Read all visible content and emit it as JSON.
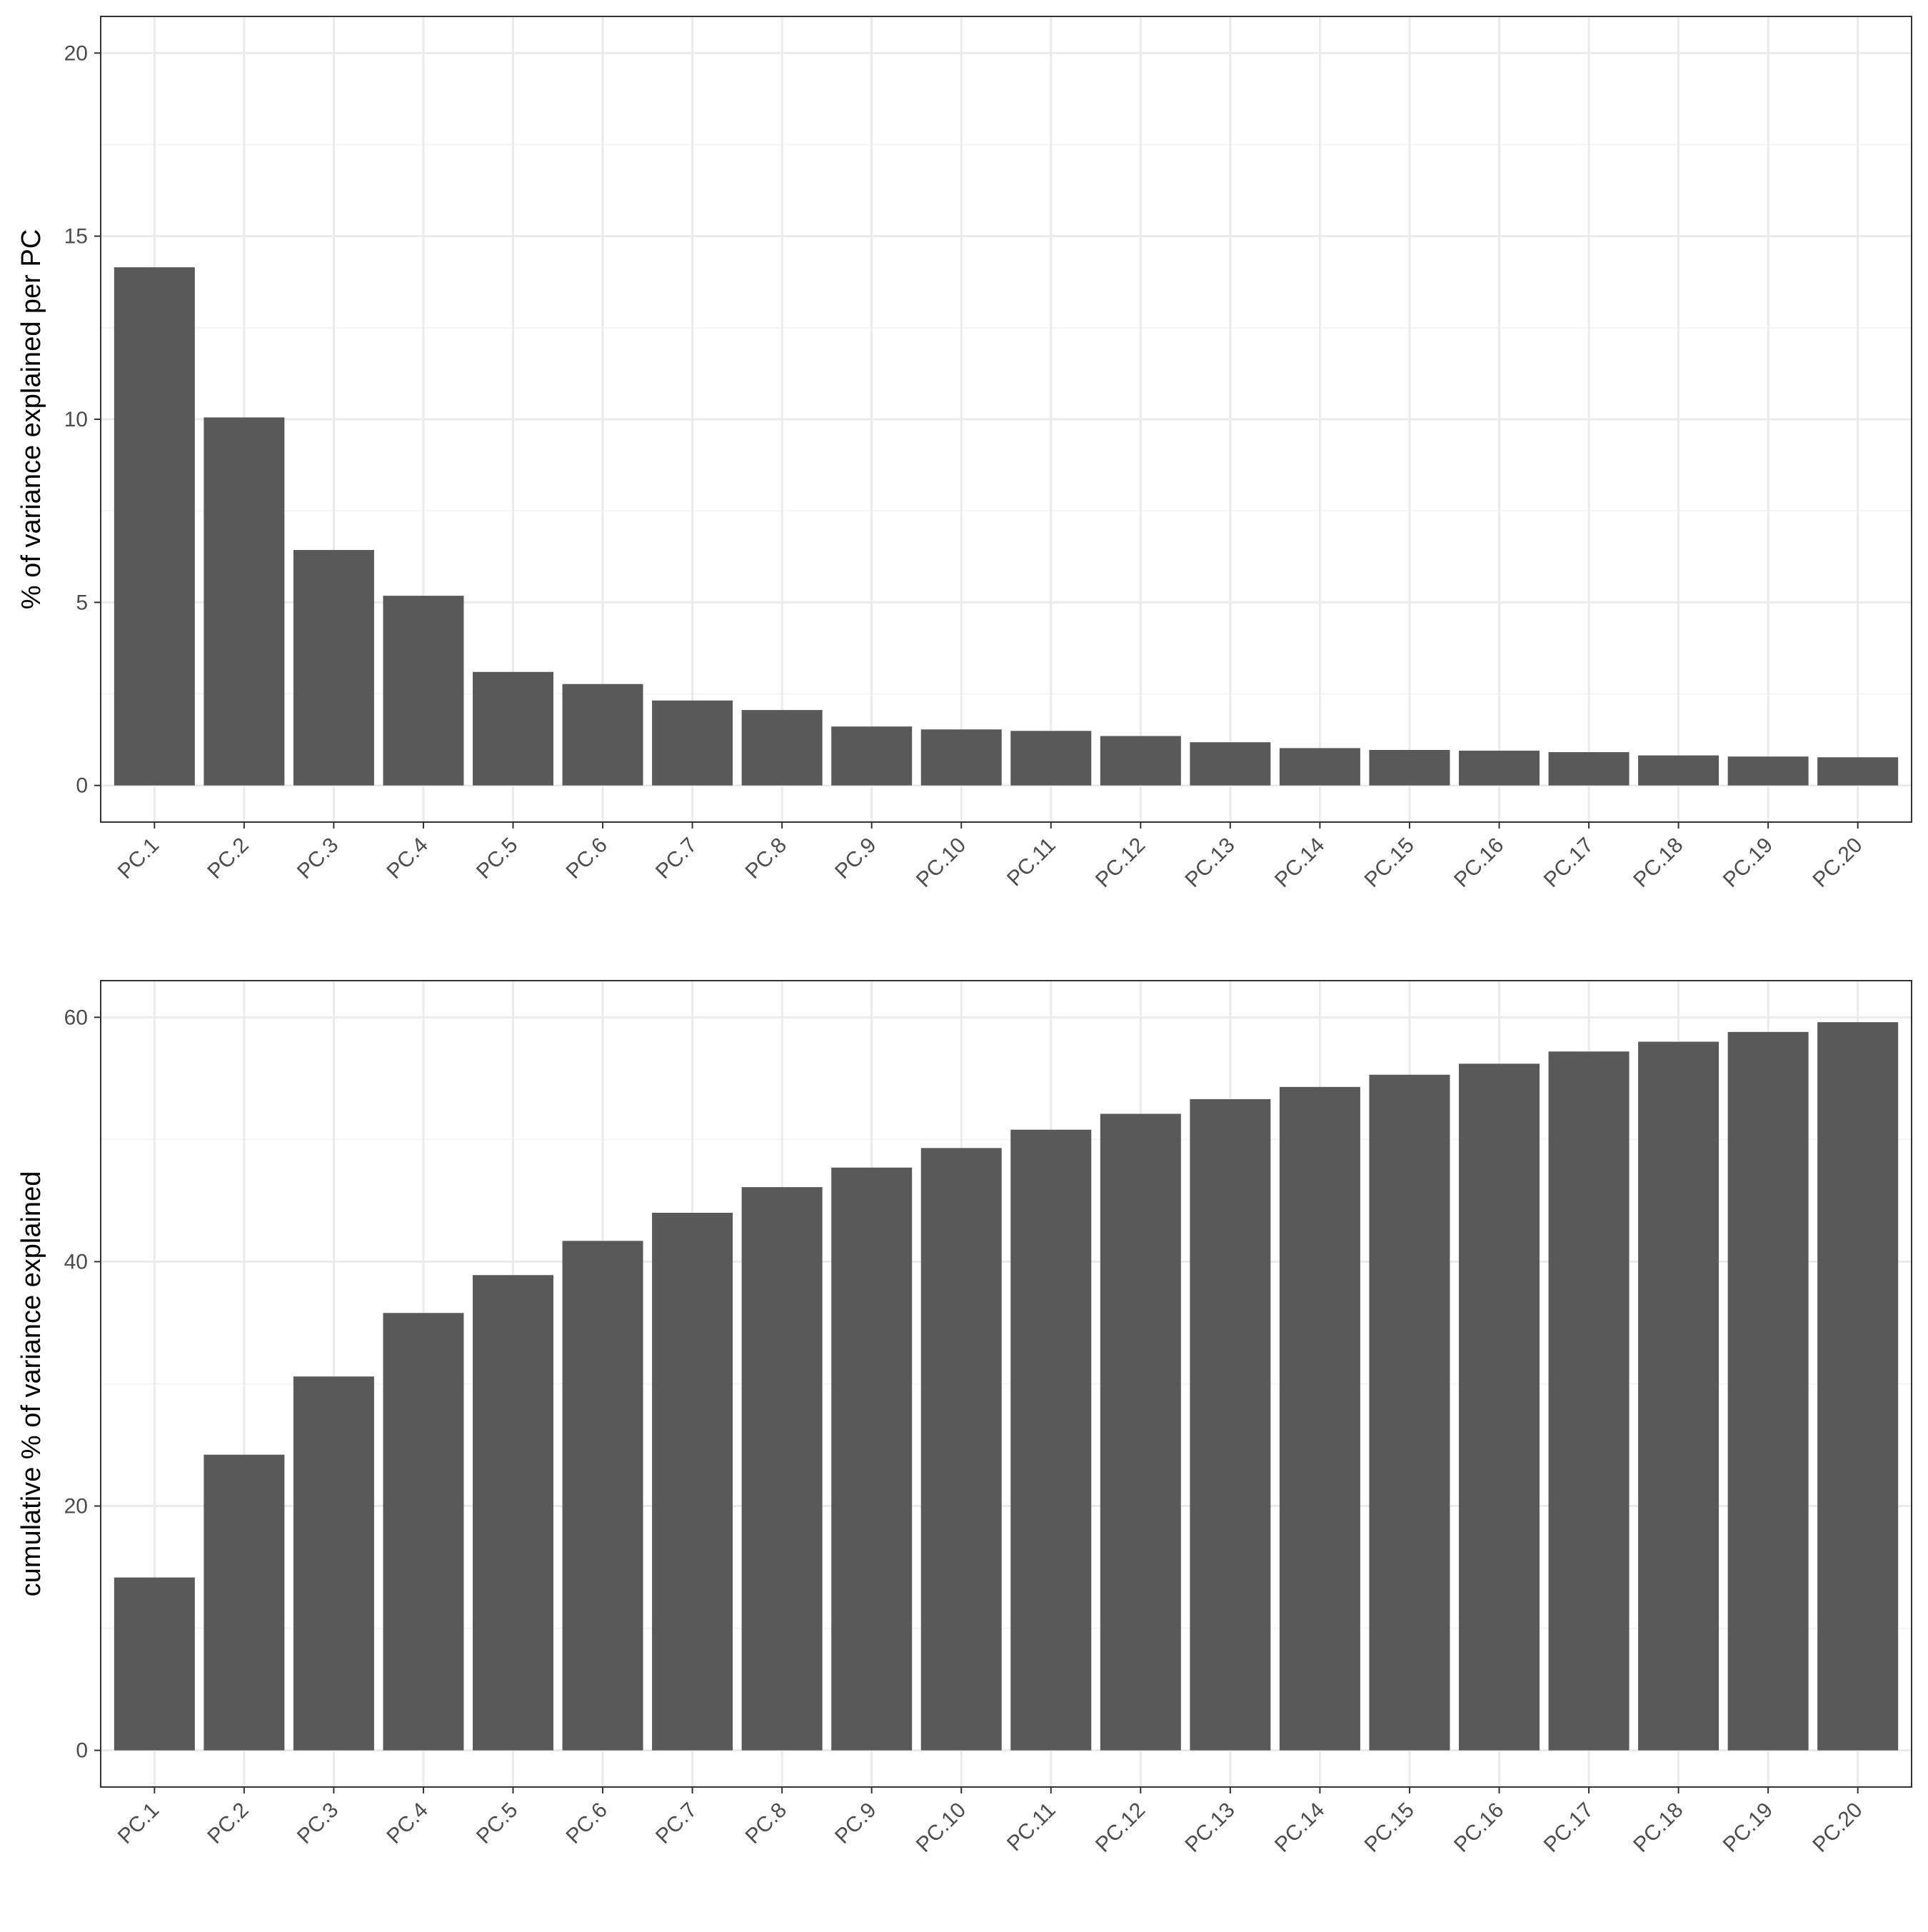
{
  "colors": {
    "bar": "#595959",
    "grid_major": "#ebebeb",
    "grid_minor": "#f2f2f2",
    "panel_border": "#333333",
    "tick_text": "#4d4d4d",
    "background": "#ffffff"
  },
  "chart_data": [
    {
      "type": "bar",
      "title": "",
      "xlabel": "",
      "ylabel": "% of variance explained per PC",
      "categories": [
        "PC.1",
        "PC.2",
        "PC.3",
        "PC.4",
        "PC.5",
        "PC.6",
        "PC.7",
        "PC.8",
        "PC.9",
        "PC.10",
        "PC.11",
        "PC.12",
        "PC.13",
        "PC.14",
        "PC.15",
        "PC.16",
        "PC.17",
        "PC.18",
        "PC.19",
        "PC.20"
      ],
      "values": [
        14.15,
        10.05,
        6.43,
        5.18,
        3.1,
        2.77,
        2.32,
        2.06,
        1.61,
        1.53,
        1.49,
        1.35,
        1.18,
        1.02,
        0.97,
        0.95,
        0.91,
        0.82,
        0.79,
        0.77
      ],
      "ylim": [
        0,
        20
      ],
      "yticks": [
        0,
        5,
        10,
        15,
        20
      ],
      "grid": true,
      "legend": "none"
    },
    {
      "type": "bar",
      "title": "",
      "xlabel": "",
      "ylabel": "cumulative % of variance explained",
      "categories": [
        "PC.1",
        "PC.2",
        "PC.3",
        "PC.4",
        "PC.5",
        "PC.6",
        "PC.7",
        "PC.8",
        "PC.9",
        "PC.10",
        "PC.11",
        "PC.12",
        "PC.13",
        "PC.14",
        "PC.15",
        "PC.16",
        "PC.17",
        "PC.18",
        "PC.19",
        "PC.20"
      ],
      "values": [
        14.15,
        24.2,
        30.6,
        35.8,
        38.9,
        41.7,
        44.0,
        46.1,
        47.7,
        49.3,
        50.8,
        52.1,
        53.3,
        54.3,
        55.3,
        56.2,
        57.2,
        58.0,
        58.8,
        59.6
      ],
      "ylim": [
        0,
        60
      ],
      "yticks": [
        0,
        20,
        40,
        60
      ],
      "grid": true,
      "legend": "none"
    }
  ]
}
